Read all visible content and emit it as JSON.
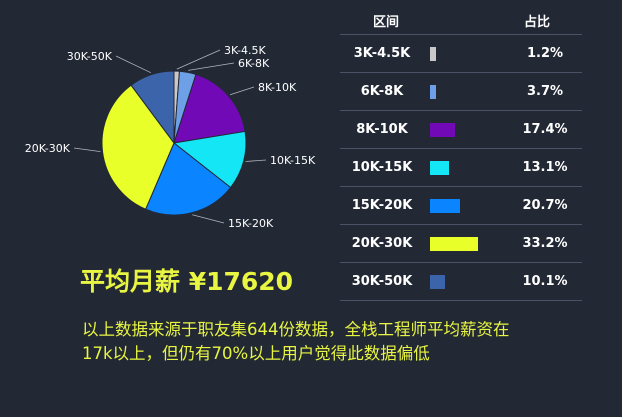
{
  "chart_data": {
    "type": "pie",
    "categories": [
      "3K-4.5K",
      "6K-8K",
      "8K-10K",
      "10K-15K",
      "15K-20K",
      "20K-30K",
      "30K-50K"
    ],
    "values": [
      1.2,
      3.7,
      17.4,
      13.1,
      20.7,
      33.2,
      10.1
    ],
    "colors": [
      "#c9c9c9",
      "#6ea0e8",
      "#7209b7",
      "#14e6f5",
      "#0a84ff",
      "#e9ff2a",
      "#3c64aa"
    ],
    "value_labels": [
      "1.2%",
      "3.7%",
      "17.4%",
      "13.1%",
      "20.7%",
      "33.2%",
      "10.1%"
    ],
    "table_headers": [
      "区间",
      "占比"
    ]
  },
  "summary": {
    "avg_salary": "平均月薪 ¥17620",
    "note": "以上数据来源于职友集644份数据，全栈工程师平均薪资在17k以上，但仍有70%以上用户觉得此数据偏低"
  }
}
